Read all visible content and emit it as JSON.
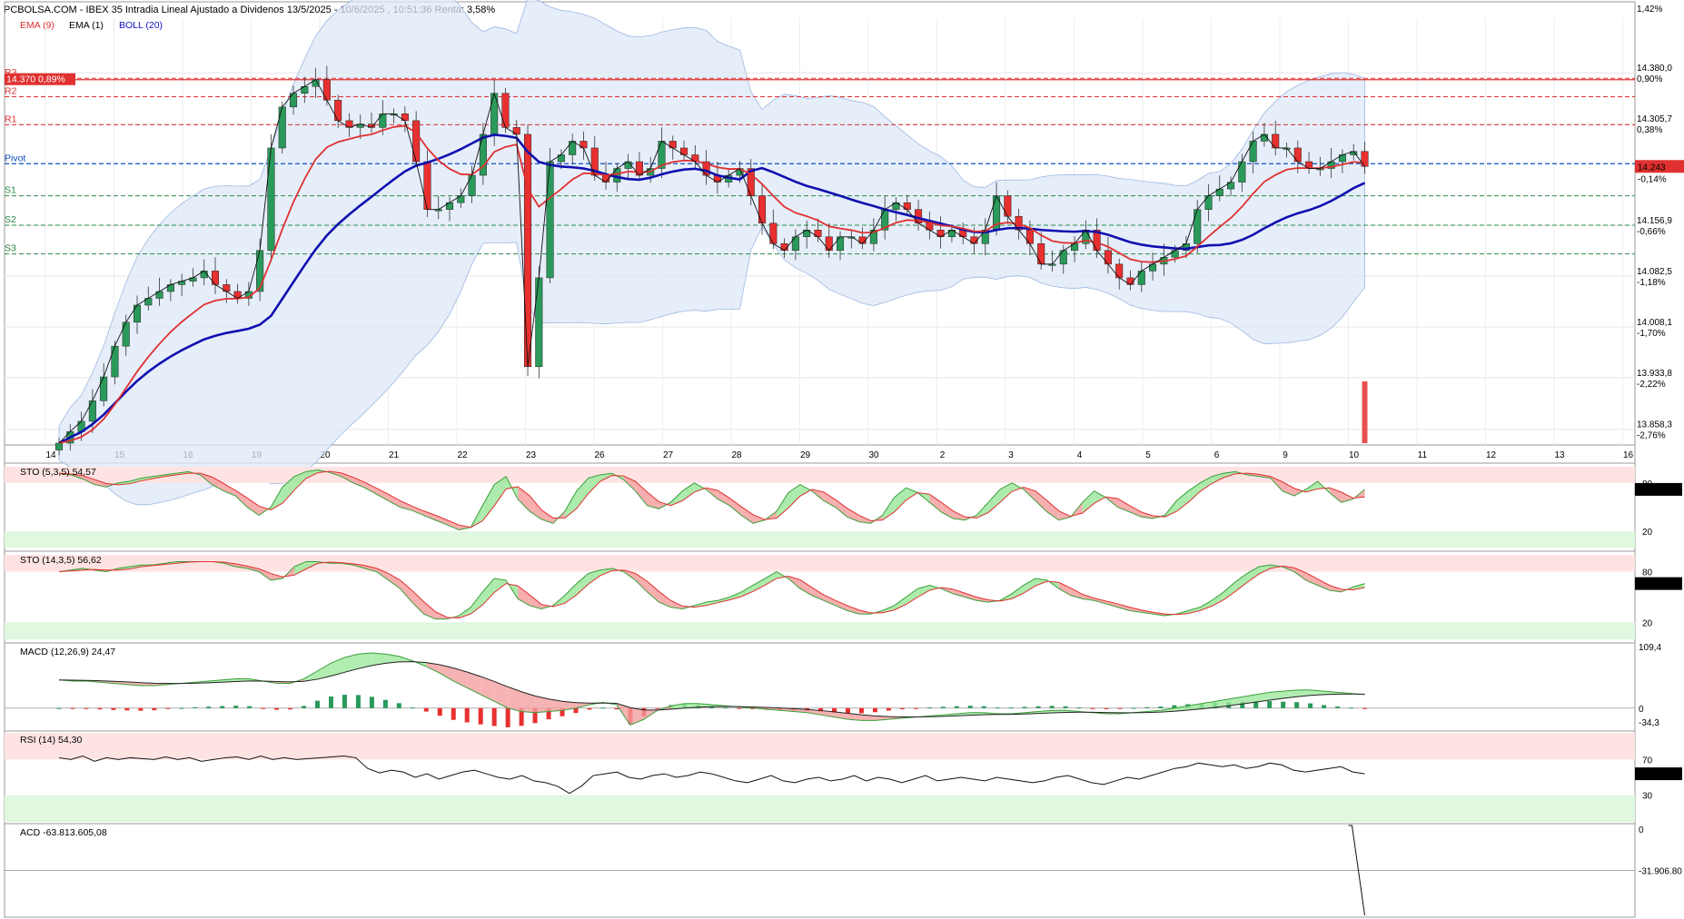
{
  "header": {
    "title": "PCBOLSA.COM - IBEX 35 Intradia Lineal Ajustado a Dividenos 13/5/2025 - 10/6/2025 , 10:51:36 Renta: 3,58%",
    "legend": [
      {
        "label": "EMA (9)",
        "color": "#e03030"
      },
      {
        "label": "EMA (1)",
        "color": "#000000"
      },
      {
        "label": "BOLL (20)",
        "color": "#1010c0"
      }
    ]
  },
  "chart_data": [
    {
      "type": "candlestick",
      "title": "IBEX 35 Intradia",
      "x_ticks": [
        "14",
        "15",
        "16",
        "19",
        "20",
        "21",
        "22",
        "23",
        "26",
        "27",
        "28",
        "29",
        "30",
        "2",
        "3",
        "4",
        "5",
        "6",
        "9",
        "10",
        "11",
        "12",
        "13",
        "16"
      ],
      "y_ticks": [
        {
          "value": "14.380,0",
          "pct": "0,90%"
        },
        {
          "value": "14.305,7",
          "pct": "0,38%"
        },
        {
          "value": "14.156,9",
          "pct": "-0,66%"
        },
        {
          "value": "14.082,5",
          "pct": "-1,18%"
        },
        {
          "value": "14.008,1",
          "pct": "-1,70%"
        },
        {
          "value": "13.933,8",
          "pct": "-2,22%"
        },
        {
          "value": "13.858,3",
          "pct": "-2,76%"
        }
      ],
      "top_tick": {
        "pct": "1,42%"
      },
      "last_price": "14.243",
      "last_pct": "-0,14%",
      "level_tag": {
        "value": "14.370",
        "pct": "0,89%"
      },
      "pivots": [
        {
          "name": "R3",
          "value": 14372,
          "color": "#e03030"
        },
        {
          "name": "R2",
          "value": 14345,
          "color": "#e03030"
        },
        {
          "name": "R1",
          "value": 14304,
          "color": "#e03030"
        },
        {
          "name": "Pivot",
          "value": 14247,
          "color": "#1050c0"
        },
        {
          "name": "S1",
          "value": 14200,
          "color": "#2a8a4a"
        },
        {
          "name": "S2",
          "value": 14157,
          "color": "#2a8a4a"
        },
        {
          "name": "S3",
          "value": 14115,
          "color": "#2a8a4a"
        }
      ],
      "ylim": [
        13838,
        14460
      ],
      "close": [
        13838,
        13855,
        13870,
        13900,
        13935,
        13980,
        14015,
        14040,
        14050,
        14060,
        14070,
        14075,
        14080,
        14090,
        14070,
        14060,
        14050,
        14060,
        14120,
        14270,
        14330,
        14350,
        14360,
        14370,
        14340,
        14310,
        14300,
        14305,
        14300,
        14320,
        14320,
        14310,
        14250,
        14180,
        14180,
        14190,
        14200,
        14230,
        14290,
        14350,
        14300,
        14290,
        13950,
        14080,
        14250,
        14260,
        14280,
        14270,
        14230,
        14220,
        14240,
        14250,
        14230,
        14240,
        14280,
        14270,
        14260,
        14250,
        14230,
        14220,
        14230,
        14240,
        14200,
        14160,
        14130,
        14120,
        14140,
        14150,
        14140,
        14120,
        14140,
        14140,
        14130,
        14150,
        14180,
        14190,
        14180,
        14160,
        14150,
        14140,
        14150,
        14140,
        14130,
        14150,
        14200,
        14170,
        14150,
        14130,
        14100,
        14100,
        14120,
        14130,
        14150,
        14120,
        14100,
        14080,
        14070,
        14090,
        14100,
        14110,
        14120,
        14130,
        14180,
        14200,
        14210,
        14220,
        14250,
        14280,
        14290,
        14270,
        14270,
        14250,
        14240,
        14240,
        14250,
        14260,
        14265,
        14243
      ]
    },
    {
      "type": "line",
      "title": "STO (5,3,5)",
      "value_label": "54,57",
      "last": "54,577",
      "levels": [
        "80",
        "20"
      ],
      "ylim": [
        0,
        100
      ],
      "k": [
        92,
        90,
        85,
        78,
        75,
        80,
        82,
        86,
        88,
        90,
        92,
        94,
        90,
        78,
        70,
        64,
        50,
        40,
        50,
        75,
        88,
        94,
        96,
        93,
        88,
        80,
        74,
        66,
        58,
        50,
        46,
        40,
        34,
        28,
        22,
        25,
        52,
        78,
        88,
        60,
        45,
        35,
        30,
        45,
        70,
        86,
        90,
        92,
        84,
        70,
        52,
        48,
        56,
        70,
        80,
        72,
        60,
        52,
        40,
        30,
        34,
        45,
        68,
        78,
        70,
        58,
        50,
        38,
        32,
        30,
        40,
        62,
        74,
        68,
        56,
        44,
        36,
        34,
        40,
        56,
        72,
        80,
        72,
        58,
        44,
        34,
        38,
        56,
        70,
        62,
        50,
        44,
        38,
        36,
        40,
        58,
        70,
        80,
        88,
        92,
        94,
        90,
        88,
        86,
        70,
        64,
        72,
        82,
        68,
        56,
        60,
        72
      ]
    },
    {
      "type": "line",
      "title": "STO (14,3,5)",
      "value_label": "56,62",
      "last": "56,629",
      "levels": [
        "80",
        "20"
      ],
      "ylim": [
        0,
        100
      ],
      "k": [
        80,
        82,
        84,
        82,
        80,
        84,
        86,
        88,
        88,
        90,
        92,
        92,
        92,
        92,
        90,
        86,
        84,
        80,
        70,
        72,
        86,
        92,
        92,
        90,
        90,
        88,
        84,
        80,
        70,
        60,
        44,
        30,
        24,
        24,
        28,
        38,
        56,
        72,
        70,
        48,
        40,
        36,
        40,
        52,
        66,
        78,
        82,
        84,
        80,
        70,
        56,
        44,
        38,
        36,
        40,
        44,
        46,
        50,
        56,
        64,
        72,
        80,
        72,
        60,
        52,
        46,
        40,
        34,
        30,
        30,
        34,
        40,
        50,
        60,
        64,
        60,
        54,
        50,
        46,
        44,
        46,
        54,
        64,
        72,
        70,
        60,
        52,
        48,
        46,
        42,
        38,
        34,
        32,
        30,
        28,
        30,
        34,
        38,
        46,
        56,
        68,
        78,
        86,
        88,
        86,
        80,
        70,
        64,
        58,
        56,
        62,
        66
      ]
    },
    {
      "type": "line",
      "title": "MACD (12,26,9)",
      "value_label": "24,47",
      "ticks": [
        "109,4",
        "0",
        "-34,3"
      ],
      "ylim": [
        -34.3,
        109.4
      ],
      "macd": [
        50,
        48,
        48,
        46,
        44,
        42,
        40,
        40,
        42,
        44,
        46,
        48,
        50,
        52,
        52,
        48,
        44,
        44,
        52,
        66,
        80,
        90,
        96,
        98,
        96,
        92,
        84,
        74,
        62,
        48,
        36,
        24,
        12,
        0,
        -6,
        -8,
        -6,
        -4,
        0,
        6,
        10,
        6,
        -30,
        -20,
        -4,
        4,
        8,
        8,
        6,
        4,
        2,
        0,
        -2,
        -4,
        -6,
        -8,
        -12,
        -16,
        -20,
        -22,
        -22,
        -20,
        -18,
        -16,
        -14,
        -12,
        -10,
        -8,
        -8,
        -10,
        -10,
        -8,
        -6,
        -4,
        -4,
        -6,
        -8,
        -10,
        -10,
        -8,
        -6,
        -4,
        0,
        4,
        8,
        12,
        16,
        20,
        24,
        28,
        30,
        32,
        32,
        30,
        28,
        26,
        24
      ]
    },
    {
      "type": "line",
      "title": "RSI (14)",
      "value_label": "54,30",
      "last": "54,303",
      "levels": [
        "70",
        "30"
      ],
      "ylim": [
        0,
        100
      ],
      "values": [
        72,
        70,
        74,
        68,
        72,
        70,
        72,
        71,
        70,
        73,
        70,
        72,
        68,
        70,
        72,
        73,
        70,
        74,
        70,
        72,
        70,
        71,
        72,
        73,
        74,
        72,
        60,
        55,
        58,
        56,
        50,
        54,
        48,
        52,
        56,
        58,
        54,
        50,
        48,
        52,
        46,
        44,
        40,
        32,
        40,
        52,
        54,
        56,
        50,
        48,
        52,
        54,
        50,
        52,
        56,
        54,
        50,
        46,
        44,
        48,
        52,
        46,
        44,
        48,
        50,
        46,
        48,
        52,
        46,
        50,
        48,
        44,
        48,
        52,
        46,
        48,
        50,
        48,
        46,
        50,
        48,
        46,
        44,
        46,
        50,
        52,
        48,
        44,
        42,
        46,
        50,
        48,
        52,
        56,
        60,
        62,
        66,
        64,
        62,
        64,
        60,
        62,
        66,
        64,
        58,
        56,
        58,
        60,
        62,
        56,
        54
      ]
    },
    {
      "type": "line",
      "title": "ACD",
      "value_label": "-63.813.605,08",
      "ticks": [
        "0",
        "-31.906.80"
      ],
      "ylim": [
        -63813605,
        0
      ],
      "values": [
        0,
        0,
        -63813605
      ]
    }
  ]
}
